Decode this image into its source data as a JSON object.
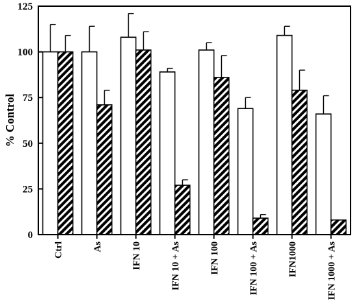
{
  "chart_data": {
    "type": "bar",
    "categories": [
      "Ctrl",
      "As",
      "IFN 10",
      "IFN 10 + As",
      "IFN 100",
      "IFN 100 + As",
      "IFN1000",
      "IFN 1000 + As"
    ],
    "series": [
      {
        "pattern": "open",
        "color": "#ffffff",
        "values": [
          100,
          100,
          108,
          89,
          101,
          69,
          109,
          66
        ],
        "errors": [
          15,
          14,
          13,
          2,
          4,
          6,
          5,
          10
        ]
      },
      {
        "pattern": "hatched",
        "color": "#000000",
        "values": [
          100,
          71,
          101,
          27,
          86,
          9,
          79,
          8
        ],
        "errors": [
          9,
          8,
          10,
          3,
          12,
          2,
          11,
          0
        ]
      }
    ],
    "ylabel": "% Control",
    "ylim": [
      0,
      125
    ],
    "yticks": [
      0,
      25,
      50,
      75,
      100,
      125
    ],
    "xlabel": "",
    "grid": false,
    "legend": "none"
  }
}
